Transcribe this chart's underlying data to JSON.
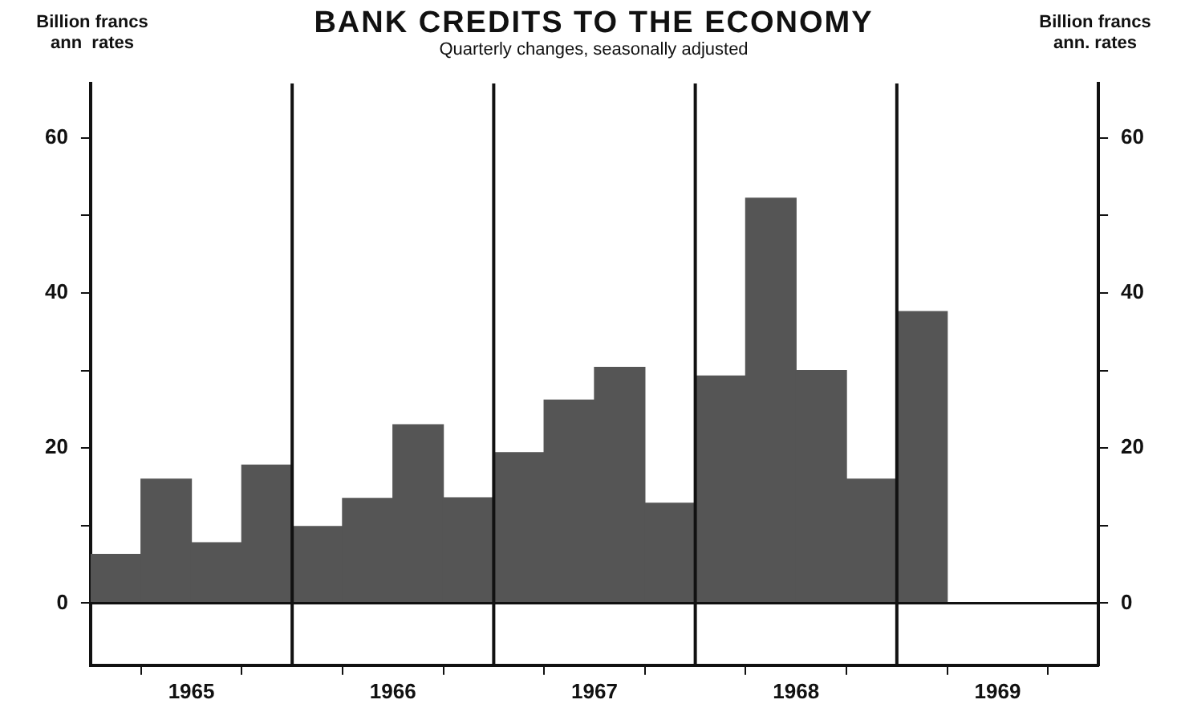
{
  "chart_data": {
    "type": "bar",
    "title": "BANK CREDITS TO THE ECONOMY",
    "subtitle": "Quarterly changes, seasonally adjusted",
    "ylabel": "Billion francs\nann  rates",
    "y2label": "Billion francs\nann. rates",
    "x": [
      1965.125,
      1965.375,
      1965.625,
      1965.875,
      1966.125,
      1966.375,
      1966.625,
      1966.875,
      1967.125,
      1967.375,
      1967.625,
      1967.875,
      1968.125,
      1968.375,
      1968.625,
      1968.875,
      1969.125
    ],
    "values": [
      6.3,
      16,
      7.8,
      17.8,
      9.9,
      13.5,
      23,
      13.6,
      19.4,
      26.2,
      30.4,
      12.9,
      29.3,
      52.2,
      30,
      16,
      37.6
    ],
    "color": "#555555",
    "xlim": [
      1965,
      1970
    ],
    "xticks": [
      {
        "value": 1965,
        "label": null
      },
      {
        "value": 1965.5,
        "label": "1965"
      },
      {
        "value": 1966,
        "label": null
      },
      {
        "value": 1966.5,
        "label": "1966"
      },
      {
        "value": 1967,
        "label": null
      },
      {
        "value": 1967.5,
        "label": "1967"
      },
      {
        "value": 1968,
        "label": null
      },
      {
        "value": 1968.5,
        "label": "1968"
      },
      {
        "value": 1969,
        "label": null
      },
      {
        "value": 1969.5,
        "label": "1969"
      },
      {
        "value": 1970,
        "label": null
      }
    ],
    "ylim": [
      -8,
      67
    ],
    "yticks": [
      0,
      {
        "value": 10,
        "label": null
      },
      20,
      {
        "value": 30,
        "label": null
      },
      40,
      {
        "value": 50,
        "label": null
      },
      60
    ],
    "y2lim": [
      -8,
      67
    ],
    "y2ticks": [
      0,
      {
        "value": 10,
        "label": null
      },
      20,
      {
        "value": 30,
        "label": null
      },
      40,
      {
        "value": 50,
        "label": null
      },
      60
    ],
    "ref_lines": [
      {
        "axis": "y",
        "value": 0,
        "label": null
      },
      {
        "axis": "x",
        "value": 1966,
        "label": null
      },
      {
        "axis": "x",
        "value": 1967,
        "label": null
      },
      {
        "axis": "x",
        "value": 1968,
        "label": null
      },
      {
        "axis": "x",
        "value": 1969,
        "label": null
      }
    ],
    "grid": false,
    "legend": false
  }
}
